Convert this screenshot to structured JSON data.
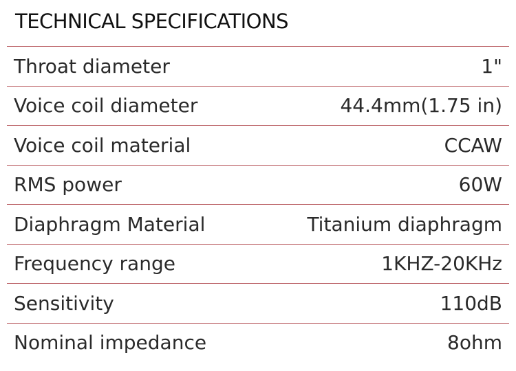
{
  "header": {
    "title": "TECHNICAL SPECIFICATIONS"
  },
  "table": {
    "rows": [
      [
        "Throat diameter",
        "1\""
      ],
      [
        "Voice coil diameter",
        "44.4mm(1.75 in)"
      ],
      [
        "Voice coil material",
        "CCAW"
      ],
      [
        "RMS power",
        "60W"
      ],
      [
        "Diaphragm Material",
        "Titanium diaphragm"
      ],
      [
        "Frequency range",
        "1KHZ-20KHz"
      ],
      [
        "Sensitivity",
        "110dB"
      ],
      [
        "Nominal impedance",
        "8ohm"
      ]
    ]
  }
}
